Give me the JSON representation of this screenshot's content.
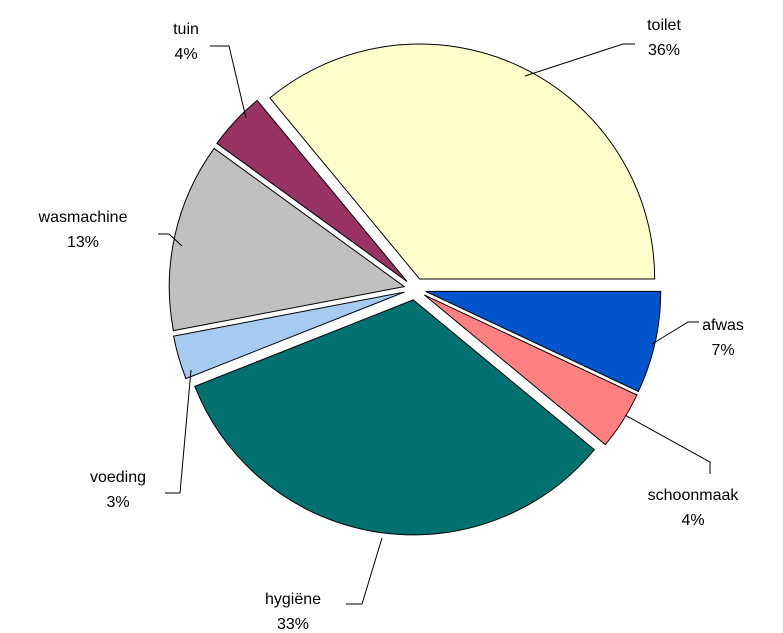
{
  "chart_data": {
    "type": "pie",
    "title": "",
    "exploded": true,
    "start_angle_deg": 0,
    "direction": "clockwise",
    "slices": [
      {
        "name": "afwas",
        "value": 7,
        "pct_label": "7%",
        "color": "#0055cc"
      },
      {
        "name": "schoonmaak",
        "value": 4,
        "pct_label": "4%",
        "color": "#ff8080"
      },
      {
        "name": "hygiëne",
        "value": 33,
        "pct_label": "33%",
        "color": "#007070"
      },
      {
        "name": "voeding",
        "value": 3,
        "pct_label": "3%",
        "color": "#a6caf0"
      },
      {
        "name": "wasmachine",
        "value": 13,
        "pct_label": "13%",
        "color": "#c0c0c0"
      },
      {
        "name": "tuin",
        "value": 4,
        "pct_label": "4%",
        "color": "#993366"
      },
      {
        "name": "toilet",
        "value": 36,
        "pct_label": "36%",
        "color": "#ffffcc"
      }
    ]
  }
}
